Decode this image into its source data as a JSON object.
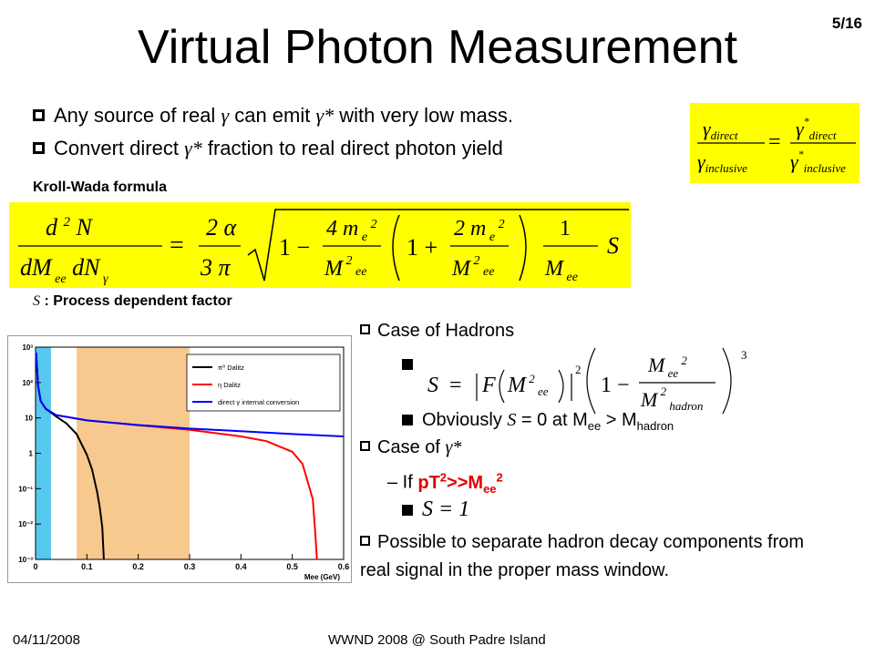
{
  "slide": {
    "page_number": "5/16",
    "title": "Virtual Photon Measurement",
    "bullets": [
      {
        "prefix": "Any source of real ",
        "symbol": "γ",
        "mid": " can emit ",
        "symbol2": "γ*",
        "suffix": " with very low mass."
      },
      {
        "prefix": "Convert direct ",
        "symbol": "γ*",
        "suffix": " fraction to real direct photon yield"
      }
    ],
    "kroll_wada_label": "Kroll-Wada formula",
    "s_factor_label": ": Process dependent factor",
    "s_symbol": "S",
    "right_list": {
      "case_hadrons": "Case of Hadrons",
      "obviously_prefix": "Obviously ",
      "obviously_s": "S",
      "obviously_mid": " = 0 at M",
      "obviously_sub1": "ee",
      "obviously_gt": " > M",
      "obviously_sub2": "hadron",
      "case_of": "Case of ",
      "case_of_symbol": "γ*",
      "if_prefix": "– If ",
      "if_red": "pT",
      "if_red_sup": "2",
      "if_red2": ">>M",
      "if_red_sub": "ee",
      "if_red_sup2": "2",
      "possible": "Possible to separate hadron decay components from real signal in the proper mass window."
    },
    "footer": {
      "date": "04/11/2008",
      "conference": "WWND 2008 @ South Padre Island"
    },
    "formulas": {
      "ratio_left_num": "γ",
      "ratio_left_num_sub": "direct",
      "ratio_left_den": "γ",
      "ratio_left_den_sub": "inclusive",
      "ratio_right_num_sub": "direct",
      "ratio_right_den_sub": "inclusive",
      "s_eq_1": "S = 1"
    },
    "colors": {
      "highlight": "#ffff00",
      "red_text": "#e00000"
    }
  },
  "chart_data": {
    "type": "line",
    "xlabel": "Mee (GeV)",
    "xlim": [
      0,
      0.6
    ],
    "ylim_log": [
      0.001,
      1000
    ],
    "y_scale": "log",
    "x_ticks": [
      "0",
      "0.1",
      "0.2",
      "0.3",
      "0.4",
      "0.5",
      "0.6"
    ],
    "y_ticks": [
      "10⁻³",
      "10⁻²",
      "10⁻¹",
      "1",
      "10",
      "10²",
      "10³"
    ],
    "legend_position": "top-right",
    "legend": [
      "π⁰ Dalitz",
      "η Dalitz",
      "direct γ internal conversion"
    ],
    "shaded_regions": [
      {
        "x": [
          0,
          0.03
        ],
        "color": "#55c8ee"
      },
      {
        "x": [
          0.08,
          0.3
        ],
        "color": "#f7c98f"
      }
    ],
    "series": [
      {
        "name": "π⁰ Dalitz",
        "color": "#000000",
        "x": [
          0.001,
          0.005,
          0.01,
          0.02,
          0.04,
          0.06,
          0.08,
          0.1,
          0.11,
          0.12,
          0.125,
          0.13,
          0.133
        ],
        "y": [
          700,
          80,
          30,
          18,
          11,
          7,
          3.5,
          0.9,
          0.35,
          0.08,
          0.03,
          0.008,
          0.001
        ]
      },
      {
        "name": "η Dalitz",
        "color": "#ff0000",
        "x": [
          0.001,
          0.005,
          0.01,
          0.02,
          0.04,
          0.1,
          0.2,
          0.3,
          0.4,
          0.45,
          0.5,
          0.52,
          0.54,
          0.545,
          0.548
        ],
        "y": [
          700,
          80,
          30,
          18,
          12,
          8.5,
          6.2,
          4.6,
          3.0,
          2.2,
          1.1,
          0.5,
          0.05,
          0.005,
          0.001
        ]
      },
      {
        "name": "direct γ internal conversion",
        "color": "#0000ff",
        "x": [
          0.001,
          0.005,
          0.01,
          0.02,
          0.04,
          0.1,
          0.2,
          0.3,
          0.4,
          0.5,
          0.6
        ],
        "y": [
          700,
          80,
          30,
          18,
          12,
          8.5,
          6.3,
          5.0,
          4.2,
          3.5,
          3.0
        ]
      }
    ]
  }
}
